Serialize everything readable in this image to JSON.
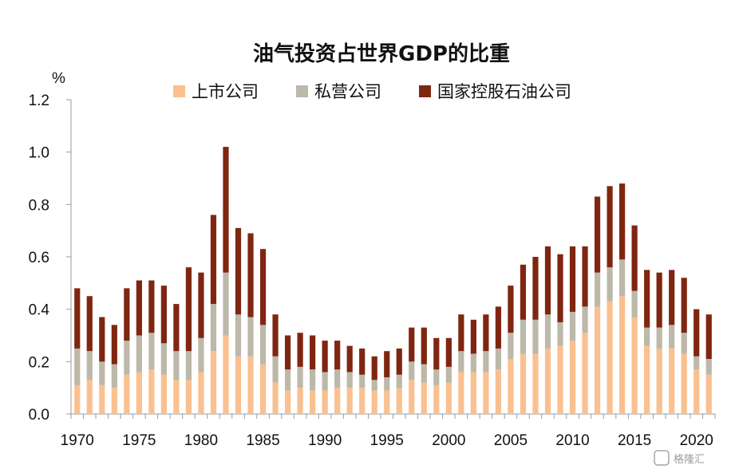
{
  "watermark": "格隆汇",
  "chart_data": {
    "type": "bar",
    "stacked": true,
    "title": "油气投资占世界GDP的比重",
    "ylabel": "%",
    "ylim": [
      0,
      1.2
    ],
    "yticks": [
      "0.0",
      "0.2",
      "0.4",
      "0.6",
      "0.8",
      "1.0",
      "1.2"
    ],
    "xtick_labels": [
      "1970",
      "1975",
      "1980",
      "1985",
      "1990",
      "1995",
      "2000",
      "2005",
      "2010",
      "2015",
      "2020"
    ],
    "grid": false,
    "legend_position": "top",
    "x": [
      1970,
      1971,
      1972,
      1973,
      1974,
      1975,
      1976,
      1977,
      1978,
      1979,
      1980,
      1981,
      1982,
      1983,
      1984,
      1985,
      1986,
      1987,
      1988,
      1989,
      1990,
      1991,
      1992,
      1993,
      1994,
      1995,
      1996,
      1997,
      1998,
      1999,
      2000,
      2001,
      2002,
      2003,
      2004,
      2005,
      2006,
      2007,
      2008,
      2009,
      2010,
      2011,
      2012,
      2013,
      2014,
      2015,
      2016,
      2017,
      2018,
      2019,
      2020,
      2021
    ],
    "series": [
      {
        "name": "上市公司",
        "color": "#FAC08F",
        "values": [
          0.11,
          0.13,
          0.11,
          0.1,
          0.15,
          0.16,
          0.17,
          0.15,
          0.13,
          0.13,
          0.16,
          0.24,
          0.3,
          0.22,
          0.22,
          0.19,
          0.12,
          0.09,
          0.1,
          0.09,
          0.09,
          0.1,
          0.1,
          0.1,
          0.09,
          0.09,
          0.1,
          0.13,
          0.12,
          0.11,
          0.12,
          0.16,
          0.16,
          0.16,
          0.17,
          0.21,
          0.23,
          0.23,
          0.25,
          0.26,
          0.28,
          0.31,
          0.41,
          0.43,
          0.45,
          0.37,
          0.26,
          0.25,
          0.25,
          0.23,
          0.17,
          0.15
        ]
      },
      {
        "name": "私营公司",
        "color": "#BCB8AA",
        "values": [
          0.14,
          0.11,
          0.09,
          0.09,
          0.13,
          0.14,
          0.14,
          0.12,
          0.11,
          0.11,
          0.13,
          0.18,
          0.24,
          0.16,
          0.15,
          0.15,
          0.1,
          0.08,
          0.08,
          0.08,
          0.07,
          0.07,
          0.06,
          0.05,
          0.04,
          0.05,
          0.05,
          0.07,
          0.07,
          0.06,
          0.06,
          0.08,
          0.07,
          0.08,
          0.08,
          0.1,
          0.13,
          0.13,
          0.13,
          0.09,
          0.11,
          0.1,
          0.13,
          0.13,
          0.14,
          0.1,
          0.07,
          0.08,
          0.09,
          0.08,
          0.05,
          0.06
        ]
      },
      {
        "name": "国家控股石油公司",
        "color": "#7F2611",
        "values": [
          0.23,
          0.21,
          0.17,
          0.15,
          0.2,
          0.21,
          0.2,
          0.22,
          0.18,
          0.32,
          0.25,
          0.34,
          0.48,
          0.33,
          0.32,
          0.29,
          0.16,
          0.13,
          0.13,
          0.13,
          0.12,
          0.11,
          0.1,
          0.1,
          0.09,
          0.1,
          0.1,
          0.13,
          0.14,
          0.12,
          0.11,
          0.14,
          0.13,
          0.14,
          0.16,
          0.18,
          0.21,
          0.24,
          0.26,
          0.26,
          0.25,
          0.23,
          0.29,
          0.31,
          0.29,
          0.25,
          0.22,
          0.21,
          0.21,
          0.21,
          0.18,
          0.17
        ]
      }
    ]
  }
}
